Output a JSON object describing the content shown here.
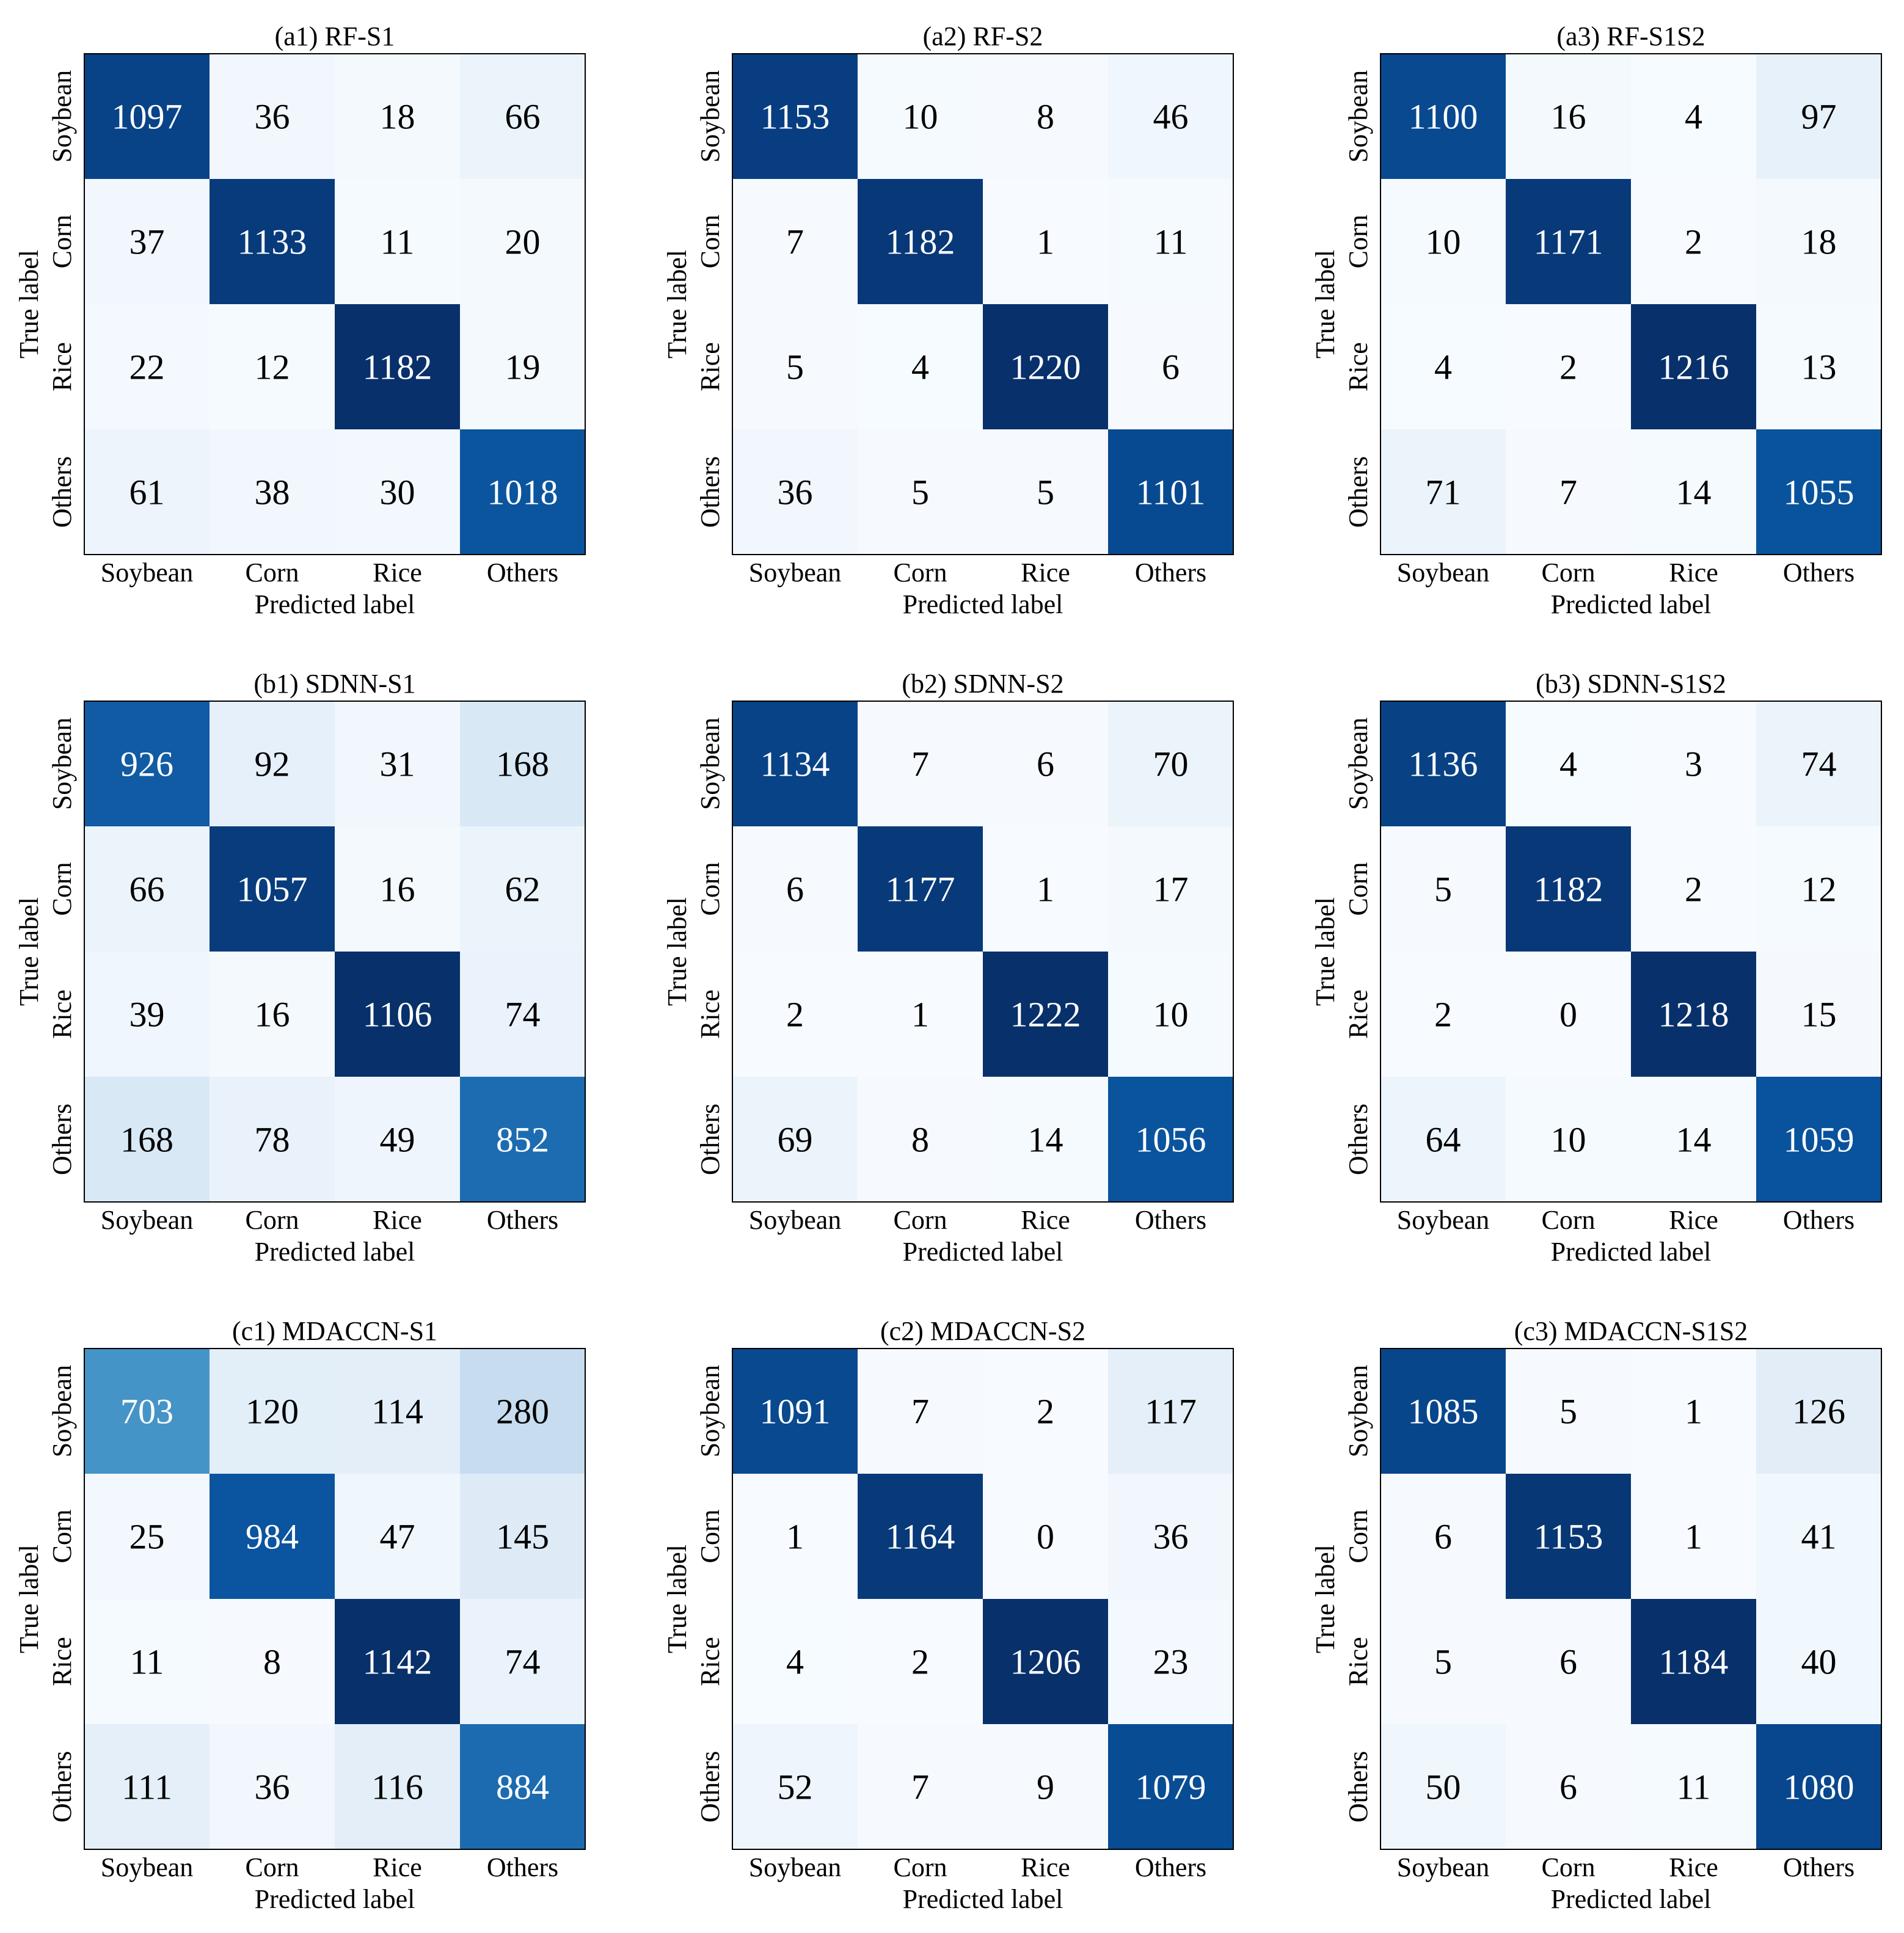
{
  "figure": {
    "colors": {
      "low": "#f7fbff",
      "high": "#08306b",
      "text_dark": "#000000",
      "text_light": "#ffffff",
      "border": "#000000"
    }
  },
  "chart_data": [
    {
      "type": "heatmap",
      "title": "(a1) RF-S1",
      "xlabel": "Predicted label",
      "ylabel": "True label",
      "x_categories": [
        "Soybean",
        "Corn",
        "Rice",
        "Others"
      ],
      "y_categories": [
        "Soybean",
        "Corn",
        "Rice",
        "Others"
      ],
      "matrix": [
        [
          1097,
          36,
          18,
          66
        ],
        [
          37,
          1133,
          11,
          20
        ],
        [
          22,
          12,
          1182,
          19
        ],
        [
          61,
          38,
          30,
          1018
        ]
      ]
    },
    {
      "type": "heatmap",
      "title": "(a2) RF-S2",
      "xlabel": "Predicted label",
      "ylabel": "True label",
      "x_categories": [
        "Soybean",
        "Corn",
        "Rice",
        "Others"
      ],
      "y_categories": [
        "Soybean",
        "Corn",
        "Rice",
        "Others"
      ],
      "matrix": [
        [
          1153,
          10,
          8,
          46
        ],
        [
          7,
          1182,
          1,
          11
        ],
        [
          5,
          4,
          1220,
          6
        ],
        [
          36,
          5,
          5,
          1101
        ]
      ]
    },
    {
      "type": "heatmap",
      "title": "(a3) RF-S1S2",
      "xlabel": "Predicted label",
      "ylabel": "True label",
      "x_categories": [
        "Soybean",
        "Corn",
        "Rice",
        "Others"
      ],
      "y_categories": [
        "Soybean",
        "Corn",
        "Rice",
        "Others"
      ],
      "matrix": [
        [
          1100,
          16,
          4,
          97
        ],
        [
          10,
          1171,
          2,
          18
        ],
        [
          4,
          2,
          1216,
          13
        ],
        [
          71,
          7,
          14,
          1055
        ]
      ]
    },
    {
      "type": "heatmap",
      "title": "(b1) SDNN-S1",
      "xlabel": "Predicted label",
      "ylabel": "True label",
      "x_categories": [
        "Soybean",
        "Corn",
        "Rice",
        "Others"
      ],
      "y_categories": [
        "Soybean",
        "Corn",
        "Rice",
        "Others"
      ],
      "matrix": [
        [
          926,
          92,
          31,
          168
        ],
        [
          66,
          1057,
          16,
          62
        ],
        [
          39,
          16,
          1106,
          74
        ],
        [
          168,
          78,
          49,
          852
        ]
      ]
    },
    {
      "type": "heatmap",
      "title": "(b2) SDNN-S2",
      "xlabel": "Predicted label",
      "ylabel": "True label",
      "x_categories": [
        "Soybean",
        "Corn",
        "Rice",
        "Others"
      ],
      "y_categories": [
        "Soybean",
        "Corn",
        "Rice",
        "Others"
      ],
      "matrix": [
        [
          1134,
          7,
          6,
          70
        ],
        [
          6,
          1177,
          1,
          17
        ],
        [
          2,
          1,
          1222,
          10
        ],
        [
          69,
          8,
          14,
          1056
        ]
      ]
    },
    {
      "type": "heatmap",
      "title": "(b3) SDNN-S1S2",
      "xlabel": "Predicted label",
      "ylabel": "True label",
      "x_categories": [
        "Soybean",
        "Corn",
        "Rice",
        "Others"
      ],
      "y_categories": [
        "Soybean",
        "Corn",
        "Rice",
        "Others"
      ],
      "matrix": [
        [
          1136,
          4,
          3,
          74
        ],
        [
          5,
          1182,
          2,
          12
        ],
        [
          2,
          0,
          1218,
          15
        ],
        [
          64,
          10,
          14,
          1059
        ]
      ]
    },
    {
      "type": "heatmap",
      "title": "(c1) MDACCN-S1",
      "xlabel": "Predicted label",
      "ylabel": "True label",
      "x_categories": [
        "Soybean",
        "Corn",
        "Rice",
        "Others"
      ],
      "y_categories": [
        "Soybean",
        "Corn",
        "Rice",
        "Others"
      ],
      "matrix": [
        [
          703,
          120,
          114,
          280
        ],
        [
          25,
          984,
          47,
          145
        ],
        [
          11,
          8,
          1142,
          74
        ],
        [
          111,
          36,
          116,
          884
        ]
      ]
    },
    {
      "type": "heatmap",
      "title": "(c2) MDACCN-S2",
      "xlabel": "Predicted label",
      "ylabel": "True label",
      "x_categories": [
        "Soybean",
        "Corn",
        "Rice",
        "Others"
      ],
      "y_categories": [
        "Soybean",
        "Corn",
        "Rice",
        "Others"
      ],
      "matrix": [
        [
          1091,
          7,
          2,
          117
        ],
        [
          1,
          1164,
          0,
          36
        ],
        [
          4,
          2,
          1206,
          23
        ],
        [
          52,
          7,
          9,
          1079
        ]
      ]
    },
    {
      "type": "heatmap",
      "title": "(c3) MDACCN-S1S2",
      "xlabel": "Predicted label",
      "ylabel": "True label",
      "x_categories": [
        "Soybean",
        "Corn",
        "Rice",
        "Others"
      ],
      "y_categories": [
        "Soybean",
        "Corn",
        "Rice",
        "Others"
      ],
      "matrix": [
        [
          1085,
          5,
          1,
          126
        ],
        [
          6,
          1153,
          1,
          41
        ],
        [
          5,
          6,
          1184,
          40
        ],
        [
          50,
          6,
          11,
          1080
        ]
      ]
    }
  ]
}
